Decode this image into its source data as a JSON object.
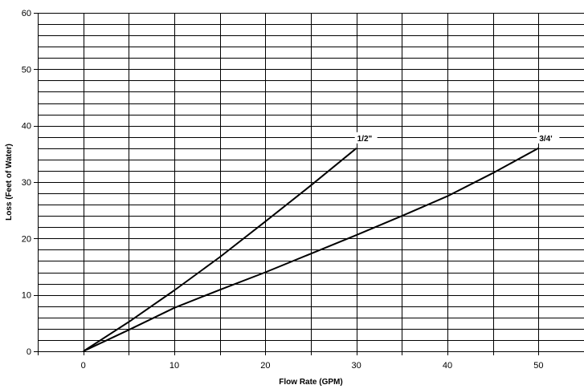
{
  "chart_data": {
    "type": "line",
    "title": "",
    "xlabel": "Flow Rate (GPM)",
    "ylabel": "Loss (Feet of Water)",
    "xlim": [
      -5,
      55
    ],
    "ylim": [
      0,
      60
    ],
    "x_ticks": [
      0,
      10,
      20,
      30,
      40,
      50
    ],
    "y_ticks": [
      0,
      10,
      20,
      30,
      40,
      50,
      60
    ],
    "x_minor_step": 5,
    "y_minor_step": 2,
    "grid": true,
    "line_color": "#000000",
    "grid_color": "#000000",
    "series": [
      {
        "name": "1/2\"",
        "x": [
          0,
          5,
          10,
          15,
          20,
          25,
          30
        ],
        "y": [
          0,
          5.2,
          10.8,
          16.7,
          23.0,
          29.4,
          36.0
        ]
      },
      {
        "name": "3/4'",
        "x": [
          0,
          5,
          10,
          15,
          20,
          25,
          30,
          35,
          40,
          45,
          50
        ],
        "y": [
          0,
          3.8,
          7.7,
          10.9,
          14.0,
          17.3,
          20.6,
          24.0,
          27.5,
          31.6,
          36.0
        ]
      }
    ]
  }
}
